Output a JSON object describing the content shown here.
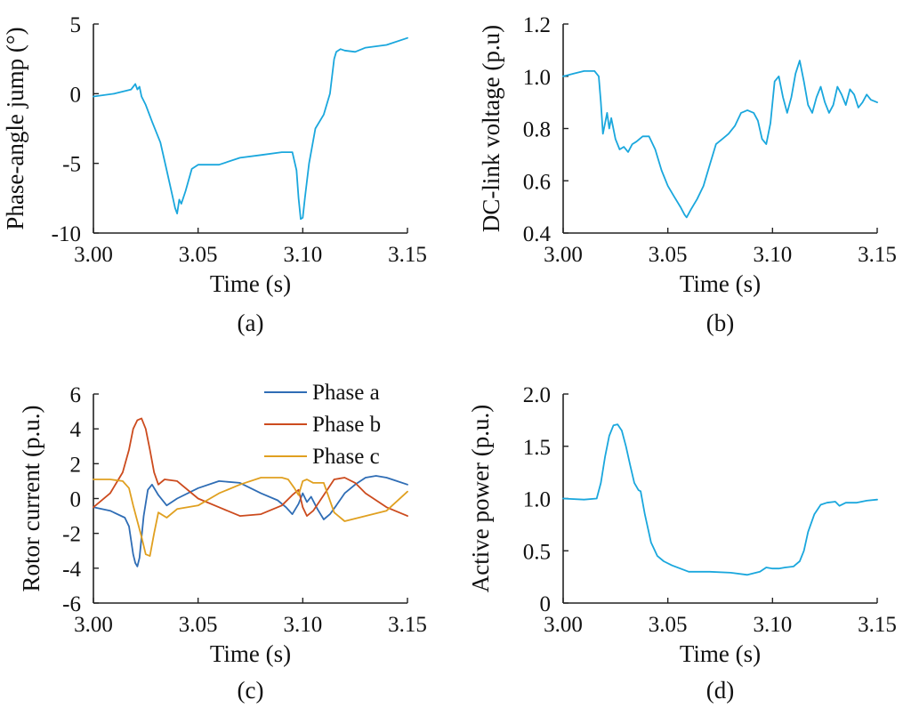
{
  "chart_data": [
    {
      "panel": "(a)",
      "type": "line",
      "xlabel": "Time (s)",
      "ylabel": "Phase-angle jump (°)",
      "xlim": [
        3.0,
        3.15
      ],
      "ylim": [
        -10,
        5
      ],
      "xticks": [
        3.0,
        3.05,
        3.1,
        3.15
      ],
      "xtick_labels": [
        "3.00",
        "3.05",
        "3.10",
        "3.15"
      ],
      "yticks": [
        5,
        0,
        -5,
        -10
      ],
      "ytick_labels": [
        "5",
        "0",
        "-5",
        "-10"
      ],
      "grid": false,
      "series": [
        {
          "color": "#1aa7dd",
          "x": [
            3.0,
            3.01,
            3.018,
            3.02,
            3.021,
            3.022,
            3.023,
            3.025,
            3.028,
            3.032,
            3.035,
            3.038,
            3.039,
            3.04,
            3.041,
            3.042,
            3.044,
            3.047,
            3.05,
            3.06,
            3.07,
            3.08,
            3.09,
            3.095,
            3.097,
            3.098,
            3.099,
            3.1,
            3.101,
            3.103,
            3.106,
            3.11,
            3.113,
            3.115,
            3.116,
            3.118,
            3.12,
            3.125,
            3.13,
            3.14,
            3.15
          ],
          "y": [
            -0.2,
            0.0,
            0.3,
            0.7,
            0.3,
            0.5,
            -0.2,
            -0.8,
            -2.0,
            -3.5,
            -5.5,
            -7.5,
            -8.2,
            -8.6,
            -7.6,
            -7.9,
            -7.0,
            -5.4,
            -5.1,
            -5.1,
            -4.6,
            -4.4,
            -4.2,
            -4.2,
            -5.5,
            -7.5,
            -9.0,
            -8.9,
            -7.5,
            -5.0,
            -2.5,
            -1.5,
            0.0,
            2.5,
            3.0,
            3.2,
            3.1,
            3.0,
            3.3,
            3.5,
            4.0
          ]
        }
      ]
    },
    {
      "panel": "(b)",
      "type": "line",
      "xlabel": "Time (s)",
      "ylabel": "DC-link voltage (p.u)",
      "xlim": [
        3.0,
        3.15
      ],
      "ylim": [
        0.4,
        1.2
      ],
      "xticks": [
        3.0,
        3.05,
        3.1,
        3.15
      ],
      "xtick_labels": [
        "3.00",
        "3.05",
        "3.10",
        "3.15"
      ],
      "yticks": [
        1.2,
        1.0,
        0.8,
        0.6,
        0.4
      ],
      "ytick_labels": [
        "1.2",
        "1.0",
        "0.8",
        "0.6",
        "0.4"
      ],
      "grid": false,
      "series": [
        {
          "color": "#1aa7dd",
          "x": [
            3.0,
            3.005,
            3.01,
            3.015,
            3.017,
            3.018,
            3.019,
            3.02,
            3.021,
            3.022,
            3.023,
            3.025,
            3.027,
            3.029,
            3.031,
            3.033,
            3.035,
            3.038,
            3.041,
            3.044,
            3.047,
            3.05,
            3.053,
            3.056,
            3.058,
            3.059,
            3.061,
            3.064,
            3.067,
            3.07,
            3.073,
            3.076,
            3.079,
            3.082,
            3.085,
            3.088,
            3.091,
            3.093,
            3.095,
            3.097,
            3.099,
            3.101,
            3.103,
            3.105,
            3.107,
            3.109,
            3.111,
            3.113,
            3.115,
            3.117,
            3.119,
            3.121,
            3.123,
            3.125,
            3.127,
            3.129,
            3.131,
            3.133,
            3.135,
            3.137,
            3.139,
            3.141,
            3.143,
            3.145,
            3.147,
            3.15
          ],
          "y": [
            1.0,
            1.01,
            1.02,
            1.02,
            1.0,
            0.9,
            0.78,
            0.82,
            0.86,
            0.8,
            0.84,
            0.76,
            0.72,
            0.73,
            0.71,
            0.74,
            0.75,
            0.77,
            0.77,
            0.72,
            0.64,
            0.58,
            0.54,
            0.5,
            0.47,
            0.46,
            0.49,
            0.53,
            0.58,
            0.66,
            0.74,
            0.76,
            0.78,
            0.81,
            0.86,
            0.87,
            0.86,
            0.83,
            0.76,
            0.74,
            0.82,
            0.98,
            1.0,
            0.92,
            0.86,
            0.92,
            1.01,
            1.06,
            0.98,
            0.89,
            0.86,
            0.92,
            0.96,
            0.9,
            0.86,
            0.89,
            0.96,
            0.93,
            0.89,
            0.95,
            0.93,
            0.88,
            0.9,
            0.93,
            0.91,
            0.9
          ]
        }
      ]
    },
    {
      "panel": "(c)",
      "type": "line",
      "xlabel": "Time (s)",
      "ylabel": "Rotor current (p.u.)",
      "xlim": [
        3.0,
        3.15
      ],
      "ylim": [
        -6,
        6
      ],
      "xticks": [
        3.0,
        3.05,
        3.1,
        3.15
      ],
      "xtick_labels": [
        "3.00",
        "3.05",
        "3.10",
        "3.15"
      ],
      "yticks": [
        6,
        4,
        2,
        0,
        -2,
        -4,
        -6
      ],
      "ytick_labels": [
        "6",
        "4",
        "2",
        "0",
        "-2",
        "-4",
        "-6"
      ],
      "grid": false,
      "legend": "top-right",
      "series": [
        {
          "name": "Phase a",
          "color": "#2f6db5",
          "x": [
            3.0,
            3.008,
            3.015,
            3.017,
            3.019,
            3.02,
            3.021,
            3.022,
            3.024,
            3.026,
            3.028,
            3.031,
            3.035,
            3.04,
            3.05,
            3.06,
            3.07,
            3.08,
            3.088,
            3.092,
            3.095,
            3.098,
            3.1,
            3.102,
            3.104,
            3.107,
            3.11,
            3.113,
            3.116,
            3.12,
            3.125,
            3.13,
            3.135,
            3.14,
            3.145,
            3.15
          ],
          "y": [
            -0.5,
            -0.7,
            -1.1,
            -1.6,
            -3.2,
            -3.7,
            -3.9,
            -3.4,
            -1.0,
            0.5,
            0.8,
            0.2,
            -0.4,
            0.0,
            0.6,
            1.0,
            0.9,
            0.3,
            -0.1,
            -0.5,
            -0.9,
            -0.3,
            0.3,
            -0.2,
            0.1,
            -0.6,
            -1.2,
            -0.9,
            -0.4,
            0.3,
            0.8,
            1.2,
            1.3,
            1.2,
            1.0,
            0.8
          ]
        },
        {
          "name": "Phase b",
          "color": "#cc4b1e",
          "x": [
            3.0,
            3.008,
            3.014,
            3.017,
            3.019,
            3.021,
            3.023,
            3.025,
            3.027,
            3.029,
            3.031,
            3.034,
            3.04,
            3.05,
            3.06,
            3.07,
            3.08,
            3.09,
            3.095,
            3.098,
            3.1,
            3.102,
            3.105,
            3.11,
            3.115,
            3.12,
            3.125,
            3.13,
            3.14,
            3.15
          ],
          "y": [
            -0.5,
            0.3,
            1.5,
            2.8,
            4.0,
            4.5,
            4.6,
            4.0,
            2.8,
            1.5,
            0.8,
            1.1,
            1.0,
            0.0,
            -0.5,
            -1.0,
            -0.9,
            -0.4,
            0.2,
            0.5,
            -0.5,
            -1.0,
            -0.7,
            0.2,
            1.1,
            1.2,
            0.9,
            0.3,
            -0.5,
            -1.0
          ]
        },
        {
          "name": "Phase c",
          "color": "#e0a020",
          "x": [
            3.0,
            3.008,
            3.014,
            3.017,
            3.019,
            3.021,
            3.023,
            3.025,
            3.027,
            3.029,
            3.031,
            3.035,
            3.04,
            3.05,
            3.06,
            3.07,
            3.08,
            3.09,
            3.093,
            3.096,
            3.098,
            3.1,
            3.102,
            3.105,
            3.11,
            3.115,
            3.12,
            3.13,
            3.14,
            3.15
          ],
          "y": [
            1.1,
            1.1,
            1.0,
            0.6,
            -0.4,
            -1.3,
            -2.2,
            -3.2,
            -3.3,
            -2.0,
            -0.8,
            -1.1,
            -0.6,
            -0.4,
            0.3,
            0.8,
            1.2,
            1.2,
            1.1,
            0.6,
            0.2,
            1.0,
            1.1,
            0.9,
            0.9,
            -0.8,
            -1.3,
            -1.0,
            -0.7,
            0.4
          ]
        }
      ]
    },
    {
      "panel": "(d)",
      "type": "line",
      "xlabel": "Time (s)",
      "ylabel": "Active power (p.u.)",
      "xlim": [
        3.0,
        3.15
      ],
      "ylim": [
        0,
        2.0
      ],
      "xticks": [
        3.0,
        3.05,
        3.1,
        3.15
      ],
      "xtick_labels": [
        "3.00",
        "3.05",
        "3.10",
        "3.15"
      ],
      "yticks": [
        2.0,
        1.5,
        1.0,
        0.5,
        0
      ],
      "ytick_labels": [
        "2.0",
        "1.5",
        "1.0",
        "0.5",
        "0"
      ],
      "grid": false,
      "series": [
        {
          "color": "#1aa7dd",
          "x": [
            3.0,
            3.01,
            3.016,
            3.018,
            3.02,
            3.022,
            3.024,
            3.026,
            3.028,
            3.03,
            3.032,
            3.034,
            3.036,
            3.037,
            3.039,
            3.042,
            3.045,
            3.048,
            3.052,
            3.06,
            3.07,
            3.08,
            3.088,
            3.094,
            3.097,
            3.1,
            3.103,
            3.106,
            3.11,
            3.113,
            3.115,
            3.117,
            3.12,
            3.123,
            3.126,
            3.13,
            3.132,
            3.135,
            3.14,
            3.145,
            3.15
          ],
          "y": [
            1.0,
            0.99,
            1.0,
            1.15,
            1.4,
            1.6,
            1.7,
            1.71,
            1.65,
            1.5,
            1.32,
            1.15,
            1.08,
            1.07,
            0.85,
            0.58,
            0.45,
            0.4,
            0.36,
            0.3,
            0.3,
            0.29,
            0.27,
            0.3,
            0.34,
            0.33,
            0.33,
            0.34,
            0.35,
            0.4,
            0.5,
            0.68,
            0.85,
            0.94,
            0.96,
            0.97,
            0.93,
            0.96,
            0.96,
            0.98,
            0.99
          ]
        }
      ]
    }
  ]
}
